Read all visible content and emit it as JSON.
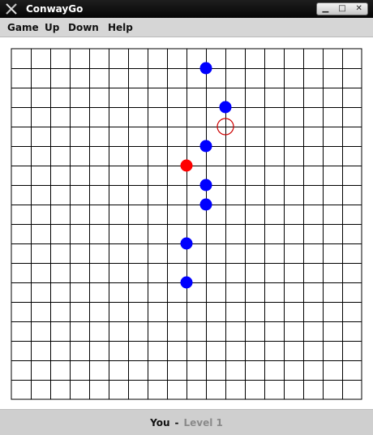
{
  "window": {
    "title": "ConwayGo",
    "icon": "x-icon",
    "buttons": {
      "minimize": "▁",
      "maximize": "□",
      "close": "✕"
    }
  },
  "menubar": {
    "items": [
      {
        "label": "Game"
      },
      {
        "label": "Up"
      },
      {
        "label": "Down"
      },
      {
        "label": "Help"
      }
    ]
  },
  "board": {
    "columns": 18,
    "rows": 18,
    "line_color": "#000000",
    "background": "#ffffff",
    "stones": [
      {
        "col": 10,
        "row": 1,
        "color": "blue"
      },
      {
        "col": 11,
        "row": 3,
        "color": "blue"
      },
      {
        "col": 10,
        "row": 5,
        "color": "blue"
      },
      {
        "col": 9,
        "row": 6,
        "color": "red"
      },
      {
        "col": 10,
        "row": 7,
        "color": "blue"
      },
      {
        "col": 10,
        "row": 8,
        "color": "blue"
      },
      {
        "col": 9,
        "row": 10,
        "color": "blue"
      },
      {
        "col": 9,
        "row": 12,
        "color": "blue"
      }
    ],
    "cursor": {
      "col": 11,
      "row": 4
    },
    "colors": {
      "blue": "#0000ff",
      "red": "#ff0000",
      "cursor": "#cc0000"
    }
  },
  "status": {
    "player": "You",
    "separator": "-",
    "level": "Level 1"
  }
}
